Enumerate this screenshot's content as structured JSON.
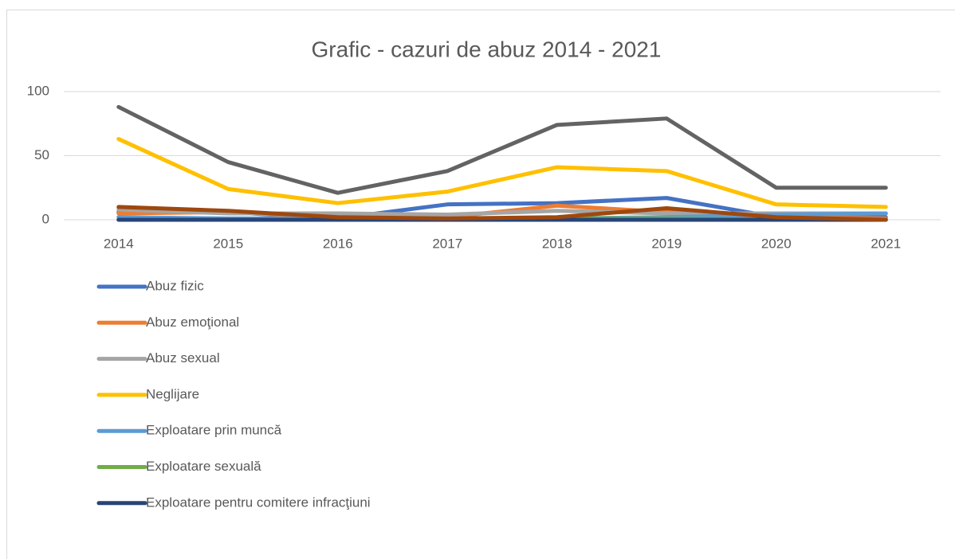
{
  "chart_data": {
    "type": "line",
    "title": "Grafic - cazuri de abuz 2014 - 2021",
    "categories": [
      "2014",
      "2015",
      "2016",
      "2017",
      "2018",
      "2019",
      "2020",
      "2021"
    ],
    "ylim": [
      0,
      100
    ],
    "yticks": [
      0,
      50,
      100
    ],
    "grid": true,
    "legend": "bottom",
    "series": [
      {
        "name": "Abuz fizic",
        "color": "#4472c4",
        "values": [
          6,
          6,
          1,
          12,
          13,
          17,
          2,
          2
        ]
      },
      {
        "name": "Abuz emoţional",
        "color": "#ed7d31",
        "values": [
          5,
          6,
          2,
          2,
          11,
          6,
          2,
          1
        ]
      },
      {
        "name": "Abuz sexual",
        "color": "#a5a5a5",
        "values": [
          8,
          5,
          5,
          4,
          7,
          5,
          5,
          5
        ]
      },
      {
        "name": "Neglijare",
        "color": "#ffc000",
        "values": [
          63,
          24,
          13,
          22,
          41,
          38,
          12,
          10
        ]
      },
      {
        "name": "Exploatare prin muncă",
        "color": "#5b9bd5",
        "values": [
          2,
          1,
          1,
          1,
          1,
          2,
          4,
          5
        ]
      },
      {
        "name": "Exploatare sexuală",
        "color": "#70ad47",
        "values": [
          0,
          0,
          0,
          0,
          1,
          1,
          0,
          0
        ]
      },
      {
        "name": "Exploatare pentru comitere infracţiuni",
        "color": "#264478",
        "values": [
          0,
          0,
          0,
          0,
          0,
          0,
          0,
          0
        ]
      },
      {
        "color": "#636363",
        "values": [
          88,
          45,
          21,
          38,
          74,
          79,
          25,
          25
        ]
      },
      {
        "color": "#9e480e",
        "values": [
          10,
          7,
          2,
          1,
          2,
          9,
          2,
          0
        ]
      }
    ]
  }
}
